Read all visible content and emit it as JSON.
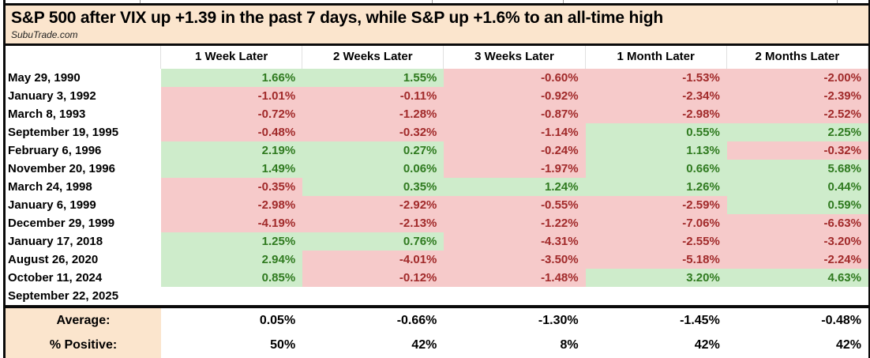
{
  "title": "S&P 500 after VIX up +1.39 in the past 7 days, while S&P up +1.6% to an all-time high",
  "source": "SubuTrade.com",
  "chart_data": {
    "type": "table",
    "title": "S&P 500 after VIX up +1.39 in the past 7 days, while S&P up +1.6% to an all-time high",
    "source": "SubuTrade.com",
    "columns": [
      "1 Week Later",
      "2 Weeks Later",
      "3 Weeks Later",
      "1 Month Later",
      "2 Months Later"
    ],
    "rows": [
      {
        "date": "May 29, 1990",
        "values": [
          "1.66%",
          "1.55%",
          "-0.60%",
          "-1.53%",
          "-2.00%"
        ]
      },
      {
        "date": "January 3, 1992",
        "values": [
          "-1.01%",
          "-0.11%",
          "-0.92%",
          "-2.34%",
          "-2.39%"
        ]
      },
      {
        "date": "March 8, 1993",
        "values": [
          "-0.72%",
          "-1.28%",
          "-0.87%",
          "-2.98%",
          "-2.52%"
        ]
      },
      {
        "date": "September 19, 1995",
        "values": [
          "-0.48%",
          "-0.32%",
          "-1.14%",
          "0.55%",
          "2.25%"
        ]
      },
      {
        "date": "February 6, 1996",
        "values": [
          "2.19%",
          "0.27%",
          "-0.24%",
          "1.13%",
          "-0.32%"
        ]
      },
      {
        "date": "November 20, 1996",
        "values": [
          "1.49%",
          "0.06%",
          "-1.97%",
          "0.66%",
          "5.68%"
        ]
      },
      {
        "date": "March 24, 1998",
        "values": [
          "-0.35%",
          "0.35%",
          "1.24%",
          "1.26%",
          "0.44%"
        ]
      },
      {
        "date": "January 6, 1999",
        "values": [
          "-2.98%",
          "-2.92%",
          "-0.55%",
          "-2.59%",
          "0.59%"
        ]
      },
      {
        "date": "December 29, 1999",
        "values": [
          "-4.19%",
          "-2.13%",
          "-1.22%",
          "-7.06%",
          "-6.63%"
        ]
      },
      {
        "date": "January 17, 2018",
        "values": [
          "1.25%",
          "0.76%",
          "-4.31%",
          "-2.55%",
          "-3.20%"
        ]
      },
      {
        "date": "August 26, 2020",
        "values": [
          "2.94%",
          "-4.01%",
          "-3.50%",
          "-5.18%",
          "-2.24%"
        ]
      },
      {
        "date": "October 11, 2024",
        "values": [
          "0.85%",
          "-0.12%",
          "-1.48%",
          "3.20%",
          "4.63%"
        ]
      },
      {
        "date": "September 22, 2025",
        "values": [
          "",
          "",
          "",
          "",
          ""
        ]
      }
    ],
    "summary_rows": [
      {
        "label": "Average:",
        "values": [
          "0.05%",
          "-0.66%",
          "-1.30%",
          "-1.45%",
          "-0.48%"
        ]
      },
      {
        "label": "% Positive:",
        "values": [
          "50%",
          "42%",
          "8%",
          "42%",
          "42%"
        ]
      }
    ],
    "cell_color_rule": "green background = positive return, pink background = negative return"
  },
  "colors": {
    "title_band_bg": "#fbe5cd",
    "positive_bg": "#ceeccb",
    "positive_text": "#2f7a1f",
    "negative_bg": "#f6caca",
    "negative_text": "#a12a2a",
    "border": "#0a0a0a"
  }
}
